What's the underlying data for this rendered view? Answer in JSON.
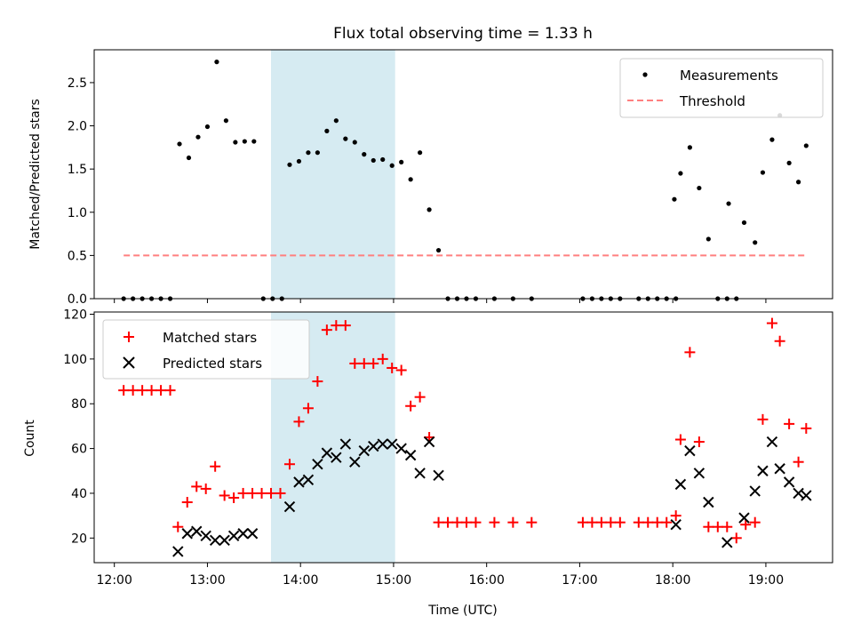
{
  "figure": {
    "title": "Flux total observing time = 1.33 h",
    "xlabel": "Time (UTC)",
    "x_ticks": [
      "12:00",
      "13:00",
      "14:00",
      "15:00",
      "16:00",
      "17:00",
      "18:00",
      "19:00"
    ],
    "highlight_span": {
      "start": "13:41",
      "end": "15:01",
      "color": "#add8e6"
    }
  },
  "chart_data": [
    {
      "type": "scatter",
      "ylabel": "Matched/Predicted stars",
      "ylim": [
        0,
        2.88
      ],
      "y_ticks": [
        0.0,
        0.5,
        1.0,
        1.5,
        2.0,
        2.5
      ],
      "y_tick_labels": [
        "0.0",
        "0.5",
        "1.0",
        "1.5",
        "2.0",
        "2.5"
      ],
      "legend": {
        "position": "top-right",
        "entries": [
          "Measurements",
          "Threshold"
        ]
      },
      "series": [
        {
          "name": "Measurements",
          "color": "#000000",
          "marker": "dot",
          "points": [
            [
              "12:06",
              0.0
            ],
            [
              "12:12",
              0.0
            ],
            [
              "12:18",
              0.0
            ],
            [
              "12:24",
              0.0
            ],
            [
              "12:30",
              0.0
            ],
            [
              "12:36",
              0.0
            ],
            [
              "12:42",
              1.79
            ],
            [
              "12:48",
              1.63
            ],
            [
              "12:54",
              1.87
            ],
            [
              "13:00",
              1.99
            ],
            [
              "13:06",
              2.74
            ],
            [
              "13:12",
              2.06
            ],
            [
              "13:18",
              1.81
            ],
            [
              "13:24",
              1.82
            ],
            [
              "13:30",
              1.82
            ],
            [
              "13:36",
              0.0
            ],
            [
              "13:42",
              0.0
            ],
            [
              "13:48",
              0.0
            ],
            [
              "13:53",
              1.55
            ],
            [
              "13:59",
              1.59
            ],
            [
              "14:05",
              1.69
            ],
            [
              "14:11",
              1.69
            ],
            [
              "14:17",
              1.94
            ],
            [
              "14:23",
              2.06
            ],
            [
              "14:29",
              1.85
            ],
            [
              "14:35",
              1.81
            ],
            [
              "14:41",
              1.67
            ],
            [
              "14:47",
              1.6
            ],
            [
              "14:53",
              1.61
            ],
            [
              "14:59",
              1.54
            ],
            [
              "15:05",
              1.58
            ],
            [
              "15:11",
              1.38
            ],
            [
              "15:17",
              1.69
            ],
            [
              "15:23",
              1.03
            ],
            [
              "15:29",
              0.56
            ],
            [
              "15:35",
              0.0
            ],
            [
              "15:41",
              0.0
            ],
            [
              "15:47",
              0.0
            ],
            [
              "15:53",
              0.0
            ],
            [
              "16:05",
              0.0
            ],
            [
              "16:17",
              0.0
            ],
            [
              "16:29",
              0.0
            ],
            [
              "17:02",
              0.0
            ],
            [
              "17:08",
              0.0
            ],
            [
              "17:14",
              0.0
            ],
            [
              "17:20",
              0.0
            ],
            [
              "17:26",
              0.0
            ],
            [
              "17:38",
              0.0
            ],
            [
              "17:44",
              0.0
            ],
            [
              "17:50",
              0.0
            ],
            [
              "17:56",
              0.0
            ],
            [
              "18:02",
              0.0
            ],
            [
              "18:01",
              1.15
            ],
            [
              "18:05",
              1.45
            ],
            [
              "18:11",
              1.75
            ],
            [
              "18:17",
              1.28
            ],
            [
              "18:23",
              0.69
            ],
            [
              "18:29",
              0.0
            ],
            [
              "18:35",
              0.0
            ],
            [
              "18:36",
              1.1
            ],
            [
              "18:41",
              0.0
            ],
            [
              "18:46",
              0.88
            ],
            [
              "18:53",
              0.65
            ],
            [
              "18:58",
              1.46
            ],
            [
              "19:04",
              1.84
            ],
            [
              "19:09",
              2.12
            ],
            [
              "19:15",
              1.57
            ],
            [
              "19:21",
              1.35
            ],
            [
              "19:26",
              1.77
            ]
          ]
        },
        {
          "name": "Threshold",
          "color": "#ff7f7f",
          "style": "dashed",
          "points": [
            [
              "12:06",
              0.5
            ],
            [
              "19:26",
              0.5
            ]
          ]
        }
      ]
    },
    {
      "type": "scatter",
      "ylabel": "Count",
      "ylim": [
        9,
        121
      ],
      "y_ticks": [
        20,
        40,
        60,
        80,
        100,
        120
      ],
      "y_tick_labels": [
        "20",
        "40",
        "60",
        "80",
        "100",
        "120"
      ],
      "legend": {
        "position": "top-left",
        "entries": [
          "Matched stars",
          "Predicted stars"
        ]
      },
      "series": [
        {
          "name": "Matched stars",
          "color": "#ff0000",
          "marker": "plus",
          "points": [
            [
              "12:06",
              86
            ],
            [
              "12:12",
              86
            ],
            [
              "12:18",
              86
            ],
            [
              "12:24",
              86
            ],
            [
              "12:30",
              86
            ],
            [
              "12:36",
              86
            ],
            [
              "12:41",
              25
            ],
            [
              "12:47",
              36
            ],
            [
              "12:53",
              43
            ],
            [
              "12:59",
              42
            ],
            [
              "13:05",
              52
            ],
            [
              "13:11",
              39
            ],
            [
              "13:17",
              38
            ],
            [
              "13:23",
              40
            ],
            [
              "13:29",
              40
            ],
            [
              "13:35",
              40
            ],
            [
              "13:41",
              40
            ],
            [
              "13:47",
              40
            ],
            [
              "13:53",
              53
            ],
            [
              "13:59",
              72
            ],
            [
              "14:05",
              78
            ],
            [
              "14:11",
              90
            ],
            [
              "14:17",
              113
            ],
            [
              "14:23",
              115
            ],
            [
              "14:29",
              115
            ],
            [
              "14:35",
              98
            ],
            [
              "14:41",
              98
            ],
            [
              "14:47",
              98
            ],
            [
              "14:53",
              100
            ],
            [
              "14:59",
              96
            ],
            [
              "15:05",
              95
            ],
            [
              "15:11",
              79
            ],
            [
              "15:17",
              83
            ],
            [
              "15:23",
              65
            ],
            [
              "15:29",
              27
            ],
            [
              "15:35",
              27
            ],
            [
              "15:41",
              27
            ],
            [
              "15:47",
              27
            ],
            [
              "15:53",
              27
            ],
            [
              "16:05",
              27
            ],
            [
              "16:17",
              27
            ],
            [
              "16:29",
              27
            ],
            [
              "17:02",
              27
            ],
            [
              "17:08",
              27
            ],
            [
              "17:14",
              27
            ],
            [
              "17:20",
              27
            ],
            [
              "17:26",
              27
            ],
            [
              "17:38",
              27
            ],
            [
              "17:44",
              27
            ],
            [
              "17:50",
              27
            ],
            [
              "17:56",
              27
            ],
            [
              "18:02",
              30
            ],
            [
              "18:05",
              64
            ],
            [
              "18:11",
              103
            ],
            [
              "18:17",
              63
            ],
            [
              "18:23",
              25
            ],
            [
              "18:29",
              25
            ],
            [
              "18:35",
              25
            ],
            [
              "18:41",
              20
            ],
            [
              "18:47",
              26
            ],
            [
              "18:53",
              27
            ],
            [
              "18:58",
              73
            ],
            [
              "19:04",
              116
            ],
            [
              "19:09",
              108
            ],
            [
              "19:15",
              71
            ],
            [
              "19:21",
              54
            ],
            [
              "19:26",
              69
            ]
          ]
        },
        {
          "name": "Predicted stars",
          "color": "#000000",
          "marker": "x",
          "points": [
            [
              "12:41",
              14
            ],
            [
              "12:47",
              22
            ],
            [
              "12:53",
              23
            ],
            [
              "12:59",
              21
            ],
            [
              "13:05",
              19
            ],
            [
              "13:11",
              19
            ],
            [
              "13:17",
              21
            ],
            [
              "13:23",
              22
            ],
            [
              "13:29",
              22
            ],
            [
              "13:53",
              34
            ],
            [
              "13:59",
              45
            ],
            [
              "14:05",
              46
            ],
            [
              "14:11",
              53
            ],
            [
              "14:17",
              58
            ],
            [
              "14:23",
              56
            ],
            [
              "14:29",
              62
            ],
            [
              "14:35",
              54
            ],
            [
              "14:41",
              59
            ],
            [
              "14:47",
              61
            ],
            [
              "14:53",
              62
            ],
            [
              "14:59",
              62
            ],
            [
              "15:05",
              60
            ],
            [
              "15:11",
              57
            ],
            [
              "15:17",
              49
            ],
            [
              "15:23",
              63
            ],
            [
              "15:29",
              48
            ],
            [
              "18:02",
              26
            ],
            [
              "18:05",
              44
            ],
            [
              "18:11",
              59
            ],
            [
              "18:17",
              49
            ],
            [
              "18:23",
              36
            ],
            [
              "18:35",
              18
            ],
            [
              "18:46",
              29
            ],
            [
              "18:53",
              41
            ],
            [
              "18:58",
              50
            ],
            [
              "19:04",
              63
            ],
            [
              "19:09",
              51
            ],
            [
              "19:15",
              45
            ],
            [
              "19:21",
              40
            ],
            [
              "19:26",
              39
            ]
          ]
        }
      ]
    }
  ]
}
